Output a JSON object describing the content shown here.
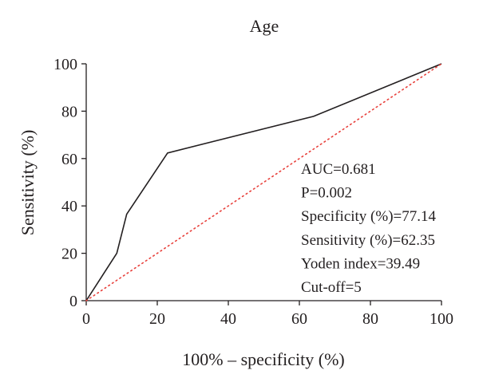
{
  "chart_data": {
    "type": "line",
    "title": "Age",
    "xlabel": "100% – specificity (%)",
    "ylabel": "Sensitivity (%)",
    "xlim": [
      0,
      100
    ],
    "ylim": [
      0,
      100
    ],
    "x_ticks": [
      0,
      20,
      40,
      60,
      80,
      100
    ],
    "y_ticks": [
      0,
      20,
      40,
      60,
      80,
      100
    ],
    "grid": false,
    "series": [
      {
        "style": "solid",
        "color": "#231f20",
        "x": [
          0,
          8.6,
          11.4,
          22.9,
          64.0,
          100
        ],
        "y": [
          0,
          20,
          36.5,
          62.35,
          77.8,
          100
        ]
      },
      {
        "style": "dotted",
        "color": "#e8413c",
        "x": [
          0,
          100
        ],
        "y": [
          0,
          100
        ]
      }
    ],
    "annotations": [
      "AUC=0.681",
      "P=0.002",
      "Specificity (%)=77.14",
      "Sensitivity (%)=62.35",
      "Yoden index=39.49",
      "Cut-off=5"
    ]
  }
}
